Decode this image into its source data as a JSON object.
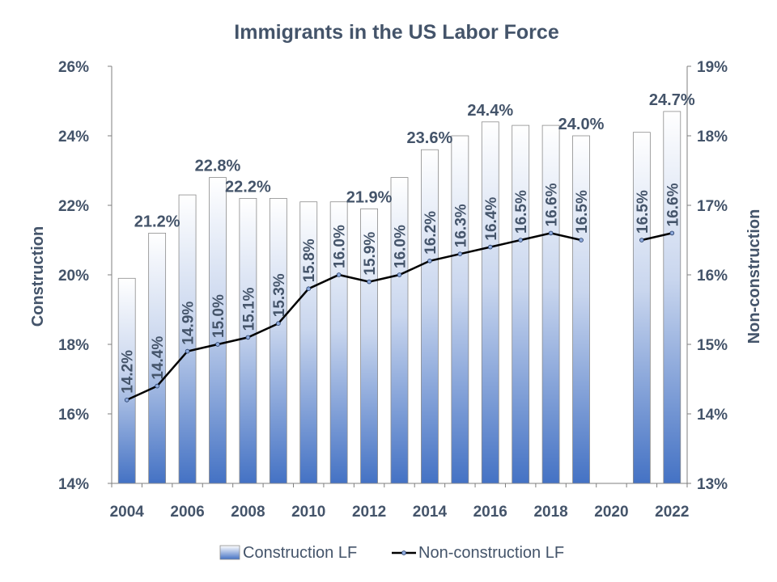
{
  "chart_data": {
    "type": "bar",
    "title": "Immigrants in the US Labor Force",
    "x": [
      2004,
      2005,
      2006,
      2007,
      2008,
      2009,
      2010,
      2011,
      2012,
      2013,
      2014,
      2015,
      2016,
      2017,
      2018,
      2019,
      2020,
      2021,
      2022
    ],
    "x_tick_labels": [
      "2004",
      "2006",
      "2008",
      "2010",
      "2012",
      "2014",
      "2016",
      "2018",
      "2020",
      "2022"
    ],
    "ylabel_left": "Construction",
    "ylabel_right": "Non-construction",
    "ylim_left": [
      14,
      26
    ],
    "ylim_right": [
      13,
      19
    ],
    "y_ticks_left": [
      "14%",
      "16%",
      "18%",
      "20%",
      "22%",
      "24%",
      "26%"
    ],
    "y_ticks_right": [
      "13%",
      "14%",
      "15%",
      "16%",
      "17%",
      "18%",
      "19%"
    ],
    "legend_position": "bottom",
    "series": [
      {
        "name": "Construction LF",
        "type": "bar",
        "axis": "left",
        "values": [
          19.9,
          21.2,
          22.3,
          22.8,
          22.2,
          22.2,
          22.1,
          22.1,
          21.9,
          22.8,
          23.6,
          24.0,
          24.4,
          24.3,
          24.3,
          24.0,
          null,
          24.1,
          24.7
        ],
        "labels": [
          "",
          "21.2%",
          "",
          "22.8%",
          "22.2%",
          "",
          "",
          "",
          "21.9%",
          "",
          "23.6%",
          "",
          "24.4%",
          "",
          "",
          "24.0%",
          "",
          "",
          "24.7%"
        ]
      },
      {
        "name": "Non-construction LF",
        "type": "line",
        "axis": "right",
        "values": [
          14.2,
          14.4,
          14.9,
          15.0,
          15.1,
          15.3,
          15.8,
          16.0,
          15.9,
          16.0,
          16.2,
          16.3,
          16.4,
          16.5,
          16.6,
          16.5,
          null,
          16.5,
          16.6
        ],
        "labels": [
          "14.2%",
          "14.4%",
          "14.9%",
          "15.0%",
          "15.1%",
          "15.3%",
          "15.8%",
          "16.0%",
          "15.9%",
          "16.0%",
          "16.2%",
          "16.3%",
          "16.4%",
          "16.5%",
          "16.6%",
          "16.5%",
          "",
          "16.5%",
          "16.6%"
        ]
      }
    ],
    "colors": {
      "text": "#44546A",
      "bar_top": "#FFFFFF",
      "bar_bottom": "#4472C4",
      "line": "#000000",
      "marker": "#8FAADC"
    }
  }
}
